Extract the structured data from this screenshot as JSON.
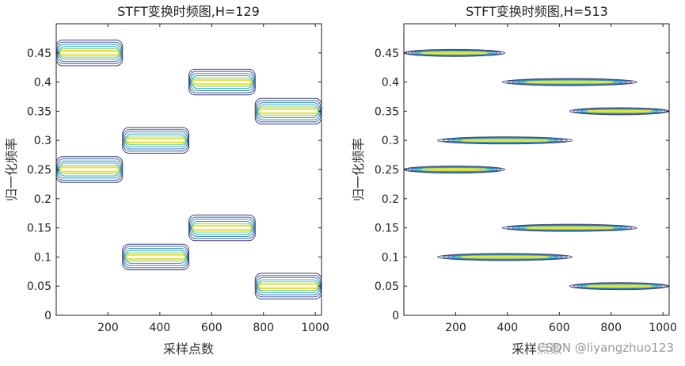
{
  "chart_data": [
    {
      "type": "contour",
      "title": "STFT变换时频图,H=129",
      "xlabel": "采样点数",
      "ylabel": "归一化频率",
      "xlim": [
        0,
        1024
      ],
      "ylim": [
        0,
        0.5
      ],
      "xticks": [
        200,
        400,
        600,
        800,
        1000
      ],
      "xtick_labels": [
        "200",
        "400",
        "600",
        "800",
        "1000"
      ],
      "yticks": [
        0,
        0.05,
        0.1,
        0.15,
        0.2,
        0.25,
        0.3,
        0.35,
        0.4,
        0.45
      ],
      "ytick_labels": [
        "0",
        "0.05",
        "0.1",
        "0.15",
        "0.2",
        "0.25",
        "0.3",
        "0.35",
        "0.4",
        "0.45"
      ],
      "segments": [
        {
          "x_start": 0,
          "x_end": 256,
          "freq": 0.45
        },
        {
          "x_start": 0,
          "x_end": 256,
          "freq": 0.25
        },
        {
          "x_start": 256,
          "x_end": 512,
          "freq": 0.3
        },
        {
          "x_start": 256,
          "x_end": 512,
          "freq": 0.1
        },
        {
          "x_start": 512,
          "x_end": 768,
          "freq": 0.4
        },
        {
          "x_start": 512,
          "x_end": 768,
          "freq": 0.15
        },
        {
          "x_start": 768,
          "x_end": 1024,
          "freq": 0.35
        },
        {
          "x_start": 768,
          "x_end": 1024,
          "freq": 0.05
        }
      ],
      "band_halfwidth": 0.022,
      "levels": 6
    },
    {
      "type": "contour",
      "title": "STFT变换时频图,H=513",
      "xlabel": "采样点数",
      "ylabel": "归一化频率",
      "xlim": [
        0,
        1024
      ],
      "ylim": [
        0,
        0.5
      ],
      "xticks": [
        200,
        400,
        600,
        800,
        1000
      ],
      "xtick_labels": [
        "200",
        "400",
        "600",
        "800",
        "1000"
      ],
      "yticks": [
        0,
        0.05,
        0.1,
        0.15,
        0.2,
        0.25,
        0.3,
        0.35,
        0.4,
        0.45
      ],
      "ytick_labels": [
        "0",
        "0.05",
        "0.1",
        "0.15",
        "0.2",
        "0.25",
        "0.3",
        "0.35",
        "0.4",
        "0.45"
      ],
      "segments": [
        {
          "x_start": 0,
          "x_end": 390,
          "freq": 0.45
        },
        {
          "x_start": 0,
          "x_end": 390,
          "freq": 0.25
        },
        {
          "x_start": 130,
          "x_end": 650,
          "freq": 0.3
        },
        {
          "x_start": 130,
          "x_end": 650,
          "freq": 0.1
        },
        {
          "x_start": 380,
          "x_end": 900,
          "freq": 0.4
        },
        {
          "x_start": 380,
          "x_end": 900,
          "freq": 0.15
        },
        {
          "x_start": 640,
          "x_end": 1024,
          "freq": 0.35
        },
        {
          "x_start": 640,
          "x_end": 1024,
          "freq": 0.05
        }
      ],
      "band_halfwidth": 0.006,
      "levels": 6
    }
  ],
  "colors": {
    "levels": [
      "#3b3b78",
      "#3a5f9a",
      "#2f83b8",
      "#2ea7c2",
      "#7ccf8e",
      "#e6e23a"
    ],
    "axis": "#222222"
  },
  "watermark": "CSDN @liyangzhuo123"
}
